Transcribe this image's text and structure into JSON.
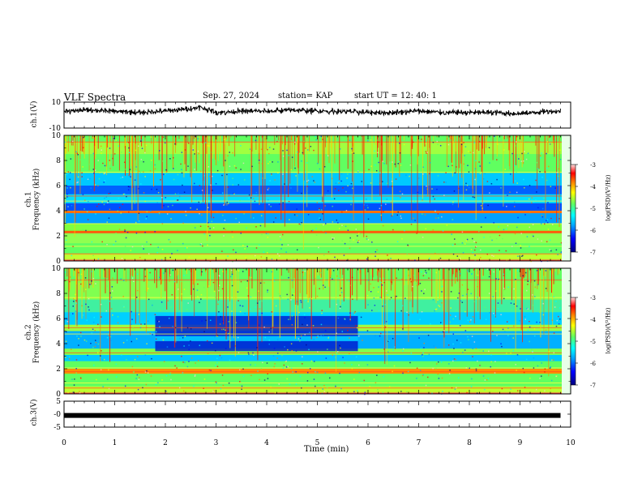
{
  "header": {
    "title": "VLF Spectra",
    "date": "Sep. 27, 2024",
    "station": "station= KAP",
    "start_ut": "start  UT =   12: 40: 1"
  },
  "colorbar_label": "log(PSD)(V²/Hz)",
  "colors": {
    "spectrogram_scale": [
      "#00007f",
      "#0000ff",
      "#00a0ff",
      "#00ffff",
      "#60ff60",
      "#ffff00",
      "#ff8000",
      "#ff0000",
      "#ffd0d0",
      "#ffffff"
    ]
  },
  "chart_data": [
    {
      "type": "line",
      "ylabel": "ch.1(V)",
      "ylim": [
        -10,
        10
      ],
      "yticks": [
        "10",
        "-10"
      ],
      "xlim": [
        0,
        10
      ],
      "description_values": "noisy waveform around 0..5 V over 0-9.8 min",
      "x": [
        0,
        0.5,
        1,
        1.5,
        2,
        2.5,
        2.7,
        3,
        3.5,
        4,
        4.5,
        5,
        5.5,
        6,
        6.5,
        7,
        7.5,
        8,
        8.5,
        9,
        9.5,
        9.8
      ],
      "y": [
        3,
        4,
        3,
        2,
        3,
        5,
        6,
        2,
        3,
        3,
        4,
        3,
        3,
        2,
        2,
        3,
        2,
        2,
        2,
        1,
        3,
        3
      ]
    },
    {
      "type": "heatmap",
      "ylabel": "ch.1\nFrequency (kHz)",
      "ylim": [
        0,
        10
      ],
      "yticks": [
        "0",
        "2",
        "4",
        "6",
        "8",
        "10"
      ],
      "xlim": [
        0,
        10
      ],
      "colorbar": {
        "min": -7,
        "max": -3,
        "ticks": [
          "-3",
          "-4",
          "-5",
          "-6",
          "-7"
        ]
      }
    },
    {
      "type": "heatmap",
      "ylabel": "ch.2\nFrequency (kHz)",
      "ylim": [
        0,
        10
      ],
      "yticks": [
        "0",
        "2",
        "4",
        "6",
        "8",
        "10"
      ],
      "xlim": [
        0,
        10
      ],
      "colorbar": {
        "min": -7,
        "max": -3,
        "ticks": [
          "-3",
          "-4",
          "-5",
          "-6",
          "-7"
        ]
      }
    },
    {
      "type": "line",
      "ylabel": "ch.3(V)",
      "ylim": [
        -5,
        5
      ],
      "yticks": [
        "5",
        "-0",
        "-5"
      ],
      "xlim": [
        0,
        10
      ],
      "xticks": [
        "0",
        "1",
        "2",
        "3",
        "4",
        "5",
        "6",
        "7",
        "8",
        "9",
        "10"
      ],
      "xlabel": "Time (min)",
      "x": [
        0,
        9.8
      ],
      "y": [
        -0.5,
        -0.5
      ]
    }
  ]
}
